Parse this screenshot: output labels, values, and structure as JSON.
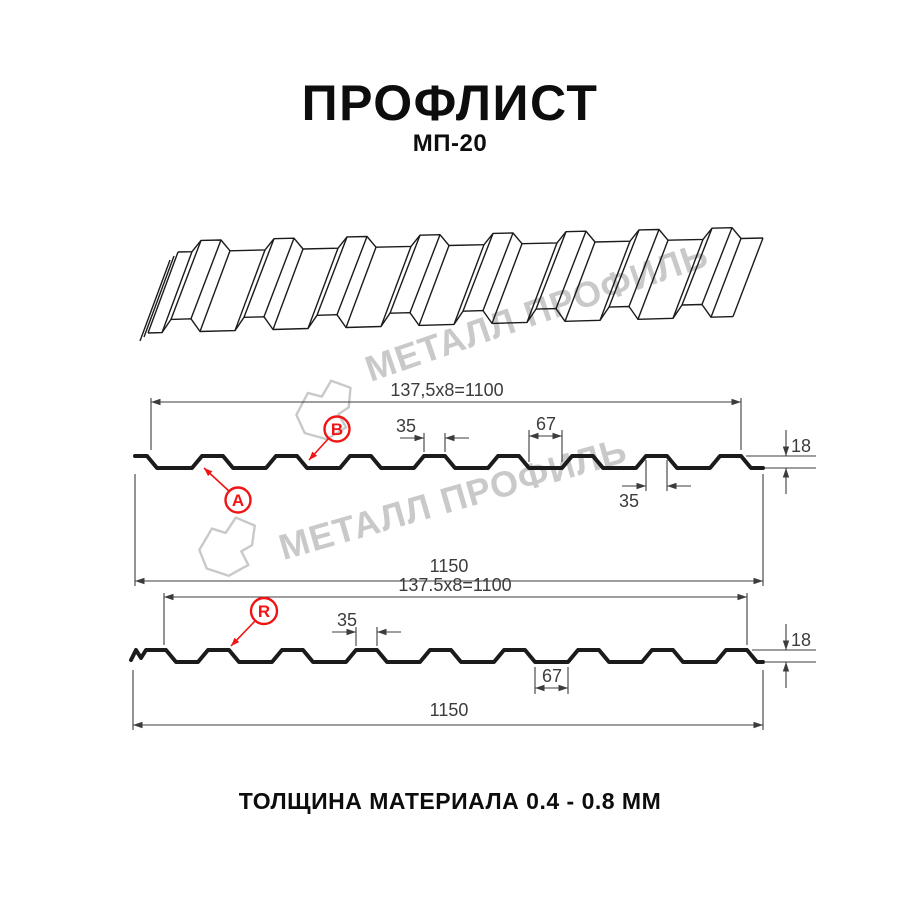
{
  "title": {
    "main": "ПРОФЛИСТ",
    "model": "МП-20"
  },
  "footer": {
    "text": "ТОЛЩИНА МАТЕРИАЛА 0.4 - 0.8 ММ"
  },
  "watermark": {
    "brand": "МЕТАЛЛ ПРОФИЛЬ"
  },
  "colors": {
    "accent_red": "#f01414",
    "line_black": "#1b1b1b",
    "dim_gray": "#3c3c3c",
    "watermark_gray": "#c9c9c9"
  },
  "section_a": {
    "pitch_dim": "137,5x8=1100",
    "crest_width": "35",
    "valley_width": "67",
    "profile_height": "18",
    "crest_width_lower": "35",
    "overall_width": "1150",
    "label_valley": "A",
    "label_crest": "B"
  },
  "section_r": {
    "pitch_dim": "137.5x8=1100",
    "crest_width": "35",
    "valley_width": "67",
    "profile_height": "18",
    "overall_width": "1150",
    "label_radius": "R"
  }
}
